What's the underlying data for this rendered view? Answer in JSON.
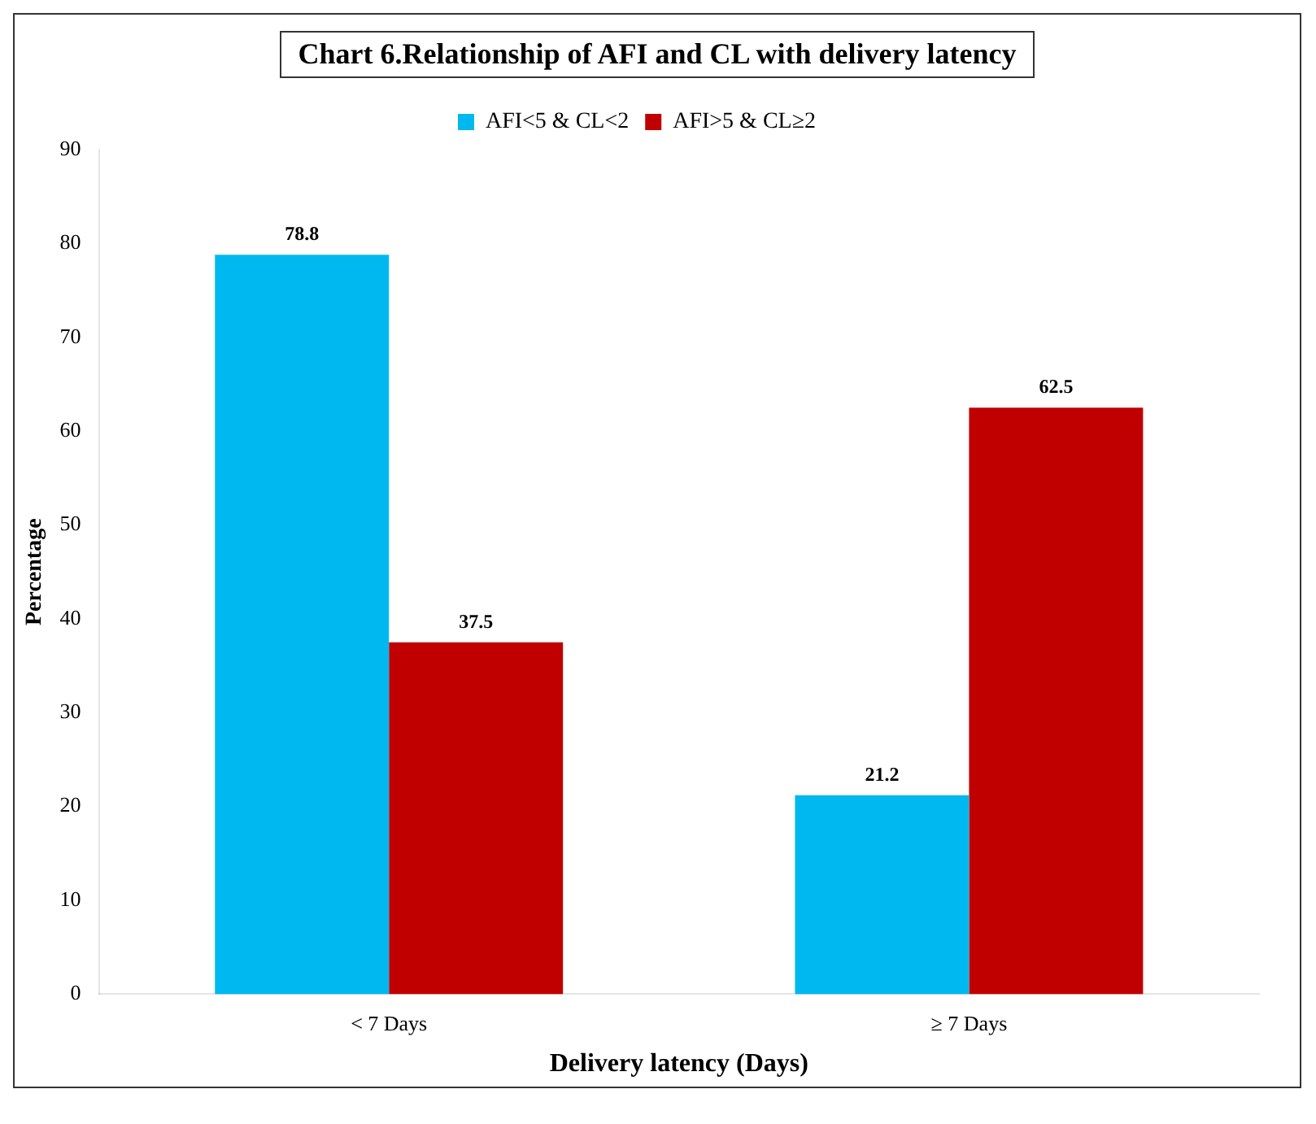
{
  "chart_data": {
    "type": "bar",
    "title": "Chart 6.Relationship of AFI and CL with delivery latency",
    "xlabel": "Delivery latency (Days)",
    "ylabel": "Percentage",
    "categories": [
      "< 7 Days",
      "≥ 7 Days"
    ],
    "series": [
      {
        "name": "AFI<5 & CL<2",
        "color": "#00b8f0",
        "values": [
          78.8,
          21.2
        ]
      },
      {
        "name": "AFI>5 & CL≥2",
        "color": "#c00000",
        "values": [
          37.5,
          62.5
        ]
      }
    ],
    "ylim": [
      0,
      90
    ],
    "yticks": [
      0,
      10,
      20,
      30,
      40,
      50,
      60,
      70,
      80,
      90
    ],
    "grid": false,
    "legend": "top",
    "data_labels": true
  }
}
